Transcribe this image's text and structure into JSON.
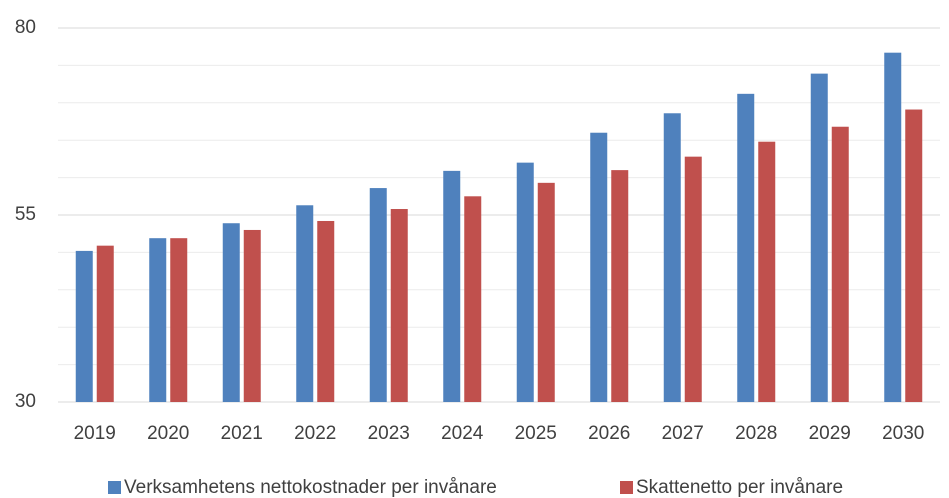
{
  "chart_data": {
    "type": "bar",
    "categories": [
      "2019",
      "2020",
      "2021",
      "2022",
      "2023",
      "2024",
      "2025",
      "2026",
      "2027",
      "2028",
      "2029",
      "2030"
    ],
    "series": [
      {
        "name": "Verksamhetens nettokostnader per invånare",
        "color": "#4f81bd",
        "values": [
          50.2,
          51.9,
          53.9,
          56.3,
          58.6,
          60.9,
          62.0,
          66.0,
          68.6,
          71.2,
          73.9,
          76.7
        ]
      },
      {
        "name": "Skattenetto per invånare",
        "color": "#c0504d",
        "values": [
          50.9,
          51.9,
          53.0,
          54.2,
          55.8,
          57.5,
          59.3,
          61.0,
          62.8,
          64.8,
          66.8,
          69.1
        ]
      }
    ],
    "ylim": [
      30,
      80
    ],
    "yticks": [
      30,
      55,
      80
    ],
    "yminor": [
      35,
      40,
      45,
      50,
      60,
      65,
      70,
      75
    ],
    "grid": true,
    "legend": "bottom"
  }
}
